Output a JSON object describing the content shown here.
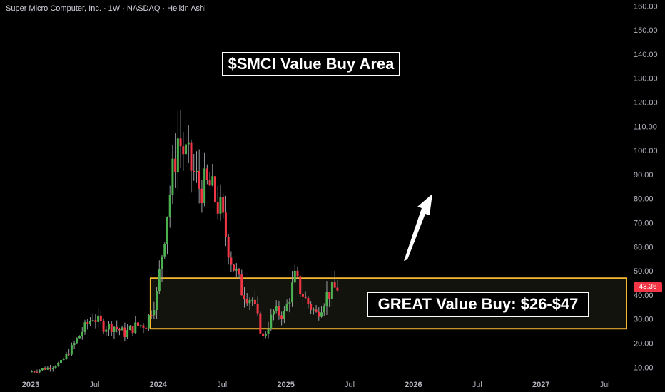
{
  "header": {
    "symbol_title": "Super Micro Computer, Inc. · 1W · NASDAQ · Heikin Ashi"
  },
  "annotations": {
    "title": "$SMCI Value Buy Area",
    "zone_label": "GREAT Value Buy: $26-$47"
  },
  "colors": {
    "background": "#000000",
    "up": "#26a69a",
    "up_bright": "#4caf50",
    "down": "#f23645",
    "zone_border": "#f5b82e",
    "zone_fill": "#12130c",
    "axis_text": "#b2b5be",
    "arrow": "#ffffff"
  },
  "chart_data": {
    "type": "candlestick",
    "subtype": "Heikin Ashi",
    "interval": "1W",
    "y_axis": {
      "position": "right",
      "ticks": [
        "160.00",
        "150.00",
        "140.00",
        "130.00",
        "120.00",
        "110.00",
        "100.00",
        "90.00",
        "80.00",
        "70.00",
        "60.00",
        "50.00",
        "40.00",
        "30.00",
        "20.00",
        "10.00"
      ],
      "range": [
        5,
        160
      ]
    },
    "x_axis": {
      "ticks": [
        "2023",
        "Jul",
        "2024",
        "Jul",
        "2025",
        "Jul",
        "2026",
        "Jul",
        "2027",
        "Jul"
      ],
      "tick_dates": [
        "2023-01",
        "2023-07",
        "2024-01",
        "2024-07",
        "2025-01",
        "2025-07",
        "2026-01",
        "2026-07",
        "2027-01",
        "2027-07"
      ]
    },
    "last_price": "43.36",
    "zone": {
      "low": 26,
      "high": 47,
      "label": "GREAT Value Buy: $26-$47"
    },
    "series_approx": [
      {
        "date": "2023-01",
        "close": 8
      },
      {
        "date": "2023-02",
        "close": 9
      },
      {
        "date": "2023-03",
        "close": 10
      },
      {
        "date": "2023-04",
        "close": 12
      },
      {
        "date": "2023-05",
        "close": 18
      },
      {
        "date": "2023-06",
        "close": 25
      },
      {
        "date": "2023-07",
        "close": 31
      },
      {
        "date": "2023-08",
        "close": 27
      },
      {
        "date": "2023-09",
        "close": 27
      },
      {
        "date": "2023-10",
        "close": 24
      },
      {
        "date": "2023-11",
        "close": 27
      },
      {
        "date": "2023-12",
        "close": 28
      },
      {
        "date": "2024-01",
        "close": 40
      },
      {
        "date": "2024-02",
        "close": 75
      },
      {
        "date": "2024-03",
        "close": 105
      },
      {
        "date": "2024-04",
        "close": 95
      },
      {
        "date": "2024-05",
        "close": 85
      },
      {
        "date": "2024-06",
        "close": 85
      },
      {
        "date": "2024-07",
        "close": 75
      },
      {
        "date": "2024-08",
        "close": 55
      },
      {
        "date": "2024-09",
        "close": 42
      },
      {
        "date": "2024-10",
        "close": 38
      },
      {
        "date": "2024-11",
        "close": 22
      },
      {
        "date": "2024-12",
        "close": 33
      },
      {
        "date": "2025-01",
        "close": 32
      },
      {
        "date": "2025-02",
        "close": 47
      },
      {
        "date": "2025-03",
        "close": 38
      },
      {
        "date": "2025-04",
        "close": 32
      },
      {
        "date": "2025-05",
        "close": 40
      },
      {
        "date": "2025-06",
        "close": 43.36
      }
    ],
    "annotation_arrow": {
      "direction": "up"
    }
  }
}
